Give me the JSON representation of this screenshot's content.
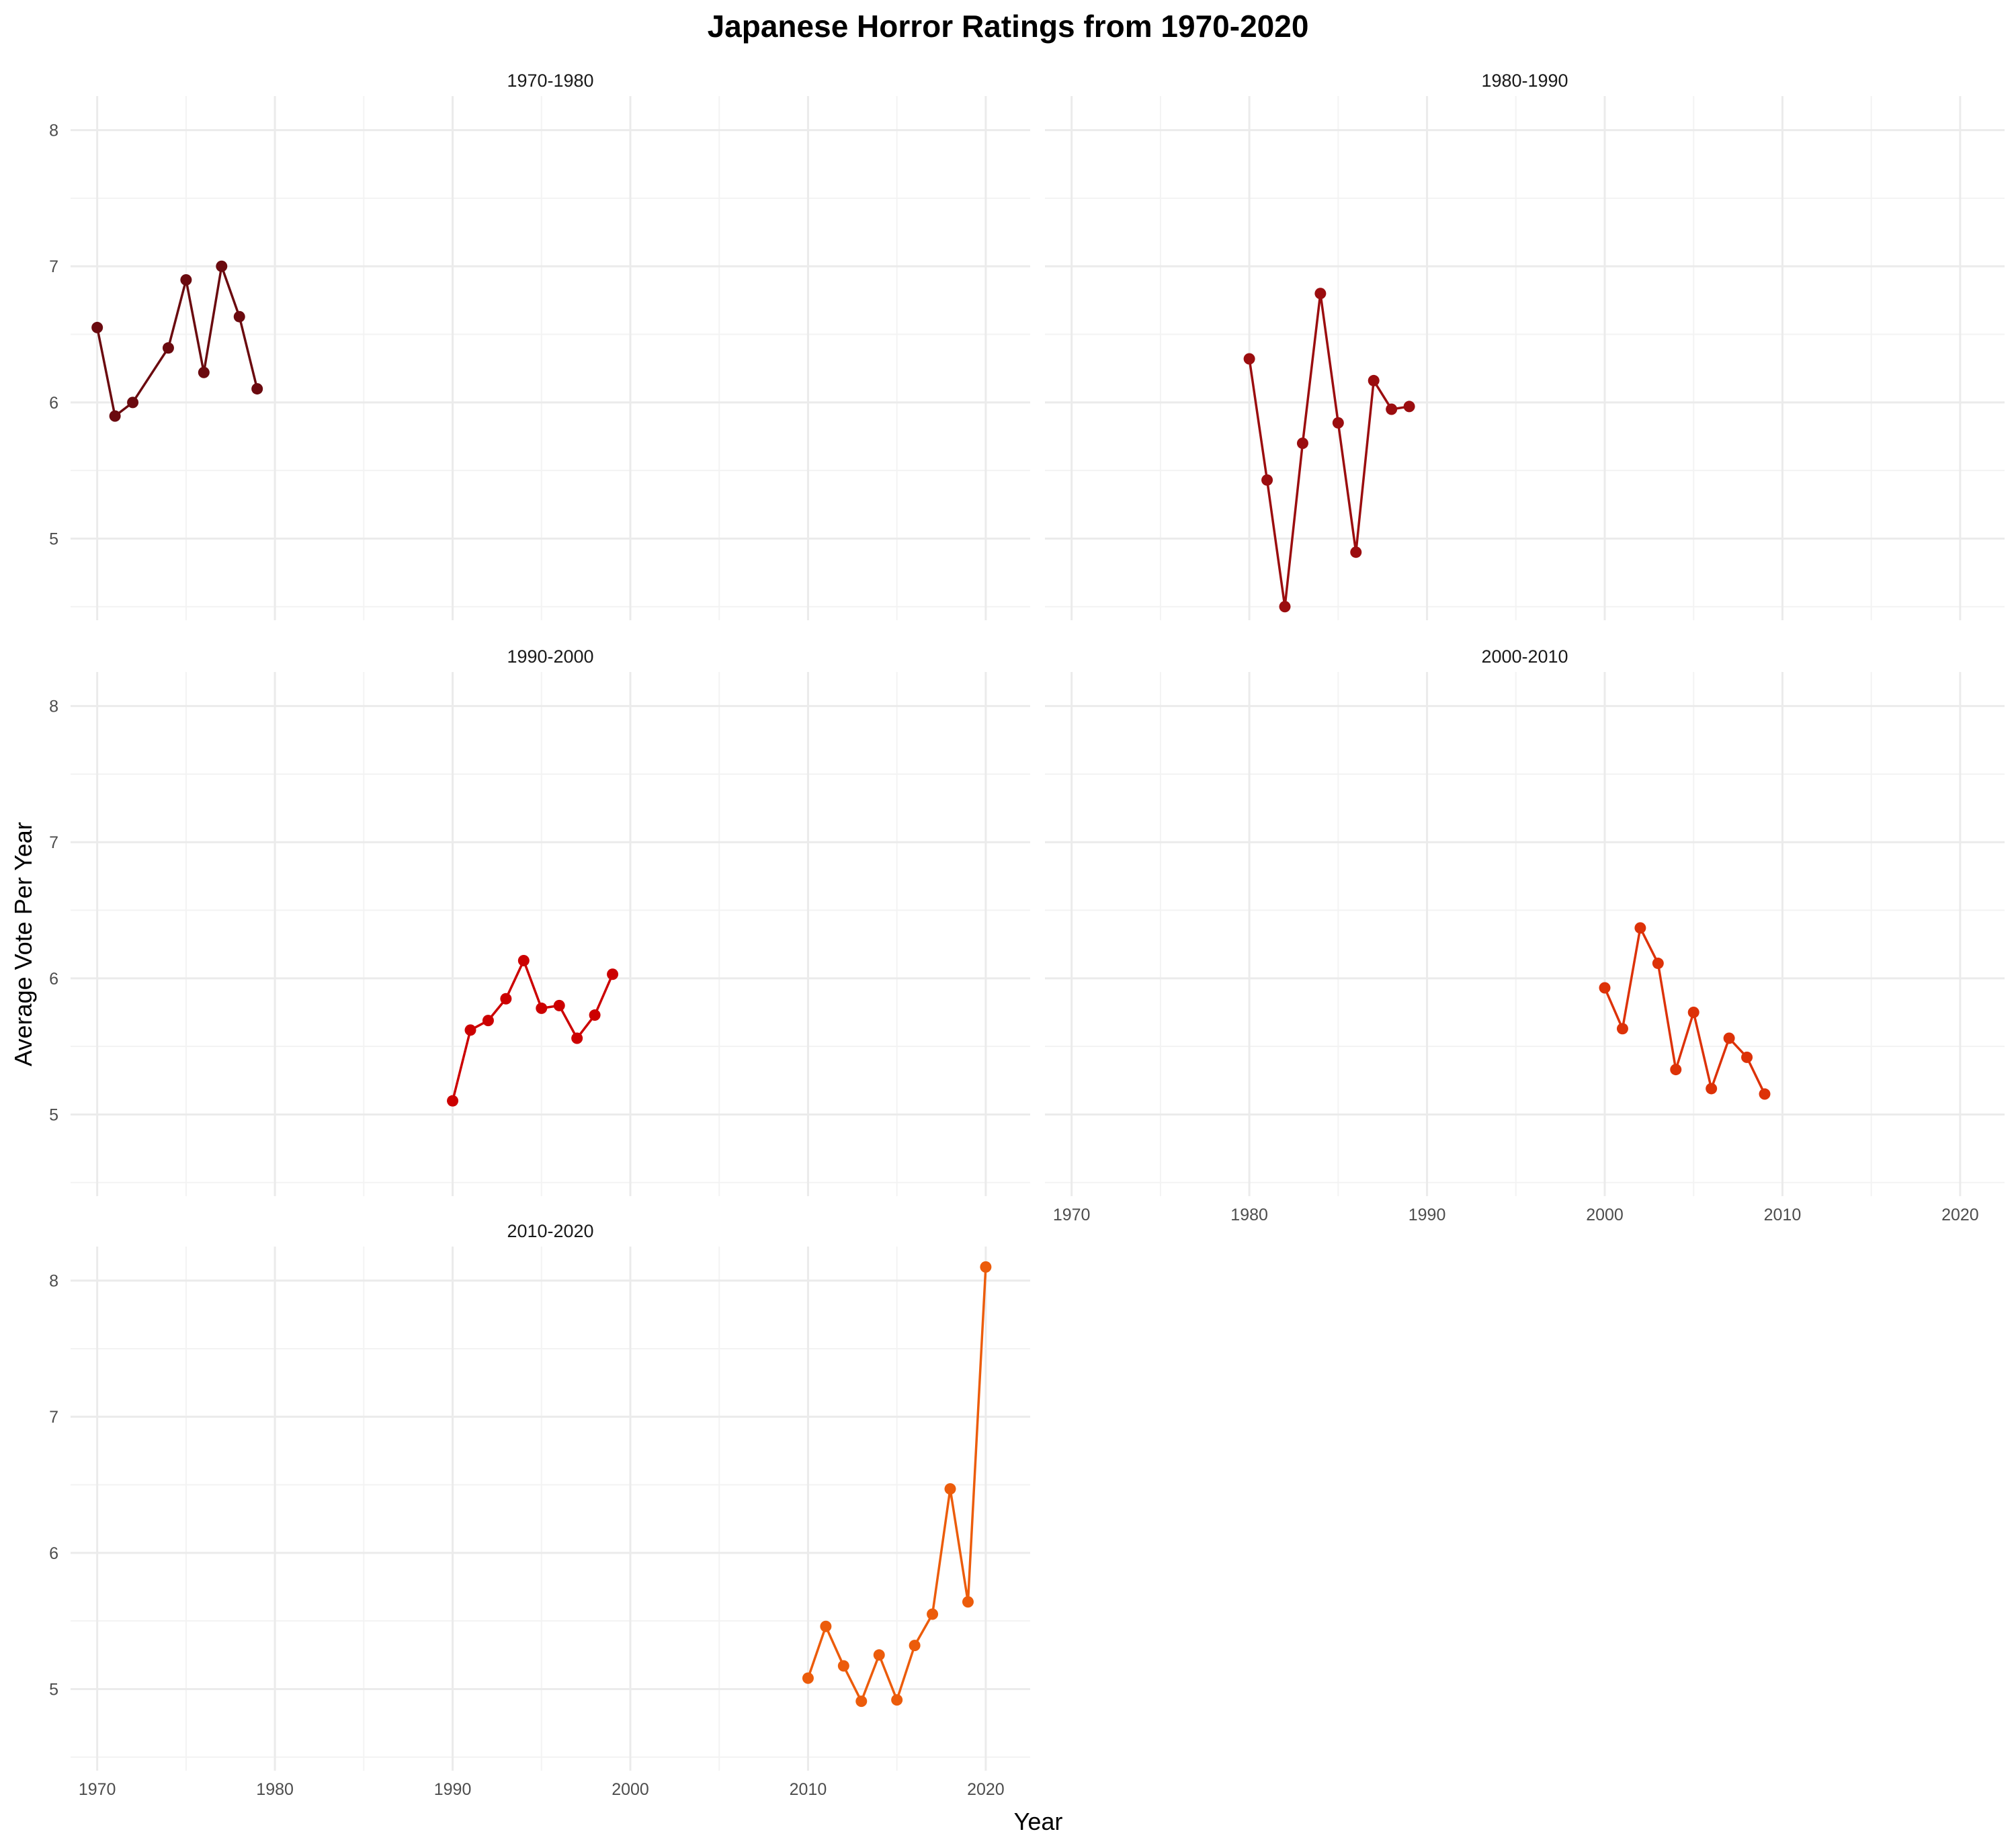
{
  "chart_data": {
    "type": "line",
    "title": "Japanese Horror Ratings from 1970-2020",
    "xlabel": "Year",
    "ylabel": "Average Vote Per Year",
    "xlim": [
      1968.5,
      2022.5
    ],
    "ylim": [
      4.4,
      8.25
    ],
    "x_ticks": [
      1970,
      1980,
      1990,
      2000,
      2010,
      2020
    ],
    "y_ticks": [
      5,
      6,
      7,
      8
    ],
    "grid": true,
    "legend": "none",
    "series": [
      {
        "name": "1970-1980",
        "color": "#6b0a0f",
        "x": [
          1970,
          1971,
          1972,
          1974,
          1975,
          1976,
          1977,
          1978,
          1979
        ],
        "y": [
          6.55,
          5.9,
          6.0,
          6.4,
          6.9,
          6.22,
          7.0,
          6.63,
          6.1
        ]
      },
      {
        "name": "1980-1990",
        "color": "#9b0d0f",
        "x": [
          1980,
          1981,
          1982,
          1983,
          1984,
          1985,
          1986,
          1987,
          1988,
          1989
        ],
        "y": [
          6.32,
          5.43,
          4.5,
          5.7,
          6.8,
          5.85,
          4.9,
          6.16,
          5.95,
          5.97
        ]
      },
      {
        "name": "1990-2000",
        "color": "#cc0000",
        "x": [
          1990,
          1991,
          1992,
          1993,
          1994,
          1995,
          1996,
          1997,
          1998,
          1999
        ],
        "y": [
          5.1,
          5.62,
          5.69,
          5.85,
          6.13,
          5.78,
          5.8,
          5.56,
          5.73,
          6.03
        ]
      },
      {
        "name": "2000-2010",
        "color": "#dd3208",
        "x": [
          2000,
          2001,
          2002,
          2003,
          2004,
          2005,
          2006,
          2007,
          2008,
          2009
        ],
        "y": [
          5.93,
          5.63,
          6.37,
          6.11,
          5.33,
          5.75,
          5.19,
          5.56,
          5.42,
          5.15
        ]
      },
      {
        "name": "2010-2020",
        "color": "#ec5c0b",
        "x": [
          2010,
          2011,
          2012,
          2013,
          2014,
          2015,
          2016,
          2017,
          2018,
          2019,
          2020
        ],
        "y": [
          5.08,
          5.46,
          5.17,
          4.91,
          5.25,
          4.92,
          5.32,
          5.55,
          6.47,
          5.64,
          8.1
        ]
      }
    ]
  }
}
